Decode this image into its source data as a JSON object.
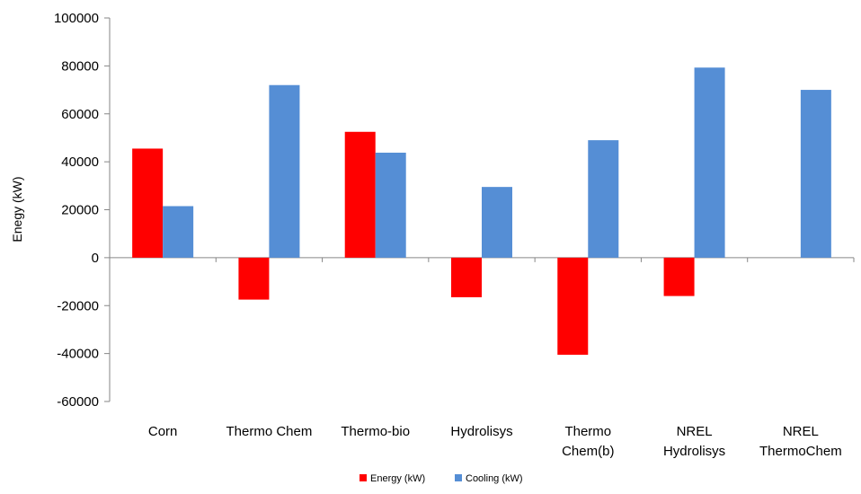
{
  "chart_data": {
    "type": "bar",
    "categories": [
      [
        "Corn"
      ],
      [
        "Thermo Chem"
      ],
      [
        "Thermo-bio"
      ],
      [
        "Hydrolisys"
      ],
      [
        "Thermo",
        "Chem(b)"
      ],
      [
        "NREL",
        "Hydrolisys"
      ],
      [
        "NREL",
        "ThermoChem"
      ]
    ],
    "series": [
      {
        "name": "Energy (kW)",
        "color": "#ff0000",
        "values": [
          45500,
          -17500,
          52500,
          -16500,
          -40500,
          -16000,
          0
        ]
      },
      {
        "name": "Cooling  (kW)",
        "color": "#558ed5",
        "values": [
          21500,
          72000,
          43800,
          29500,
          49000,
          79300,
          70000
        ]
      }
    ],
    "title": "",
    "xlabel": "",
    "ylabel": "Enegy (kW)",
    "ylim": [
      -60000,
      100000
    ],
    "yticks": [
      100000,
      80000,
      60000,
      40000,
      20000,
      0,
      -20000,
      -40000,
      -60000
    ],
    "grid": false,
    "legend_position": "bottom"
  }
}
